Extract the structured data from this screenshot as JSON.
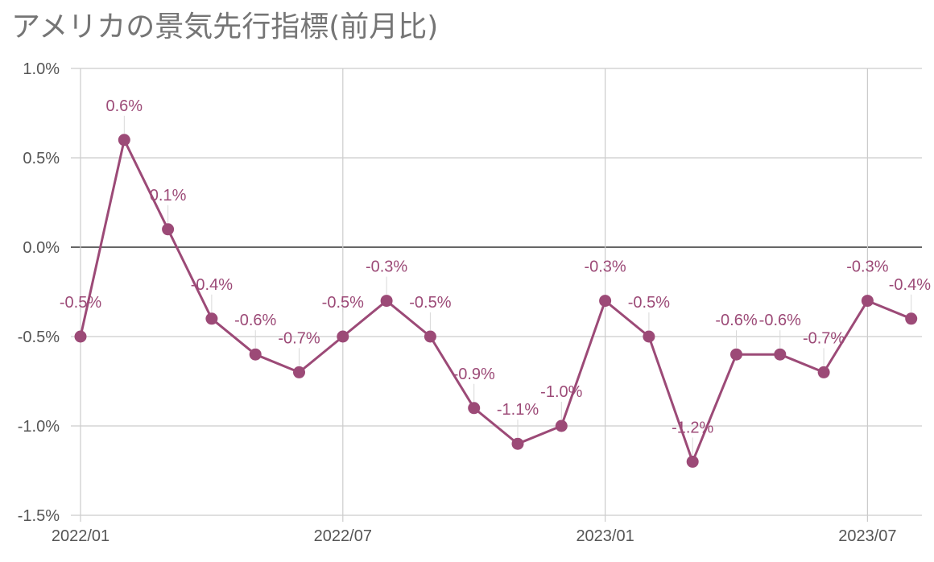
{
  "title": "アメリカの景気先行指標(前月比)",
  "colors": {
    "series": "#9c4a77",
    "grid": "#cccccc",
    "zero_line": "#333333",
    "tick_text": "#555555",
    "title": "#757575"
  },
  "chart_data": {
    "type": "line",
    "title": "アメリカの景気先行指標(前月比)",
    "x": [
      "2022/01",
      "2022/02",
      "2022/03",
      "2022/04",
      "2022/05",
      "2022/06",
      "2022/07",
      "2022/08",
      "2022/09",
      "2022/10",
      "2022/11",
      "2022/12",
      "2023/01",
      "2023/02",
      "2023/03",
      "2023/04",
      "2023/05",
      "2023/06",
      "2023/07",
      "2023/08"
    ],
    "values": [
      -0.5,
      0.6,
      0.1,
      -0.4,
      -0.6,
      -0.7,
      -0.5,
      -0.3,
      -0.5,
      -0.9,
      -1.1,
      -1.0,
      -0.3,
      -0.5,
      -1.2,
      -0.6,
      -0.6,
      -0.7,
      -0.3,
      -0.4
    ],
    "data_labels": [
      "-0.5%",
      "0.6%",
      "0.1%",
      "-0.4%",
      "-0.6%",
      "-0.7%",
      "-0.5%",
      "-0.3%",
      "-0.5%",
      "-0.9%",
      "-1.1%",
      "-1.0%",
      "-0.3%",
      "-0.5%",
      "-1.2%",
      "-0.6%",
      "-0.6%",
      "-0.7%",
      "-0.3%",
      "-0.4%"
    ],
    "x_tick_labels": [
      "2022/01",
      "2022/07",
      "2023/01",
      "2023/07"
    ],
    "x_tick_indices": [
      0,
      6,
      12,
      18
    ],
    "y_tick_values": [
      1.0,
      0.5,
      0.0,
      -0.5,
      -1.0,
      -1.5
    ],
    "y_tick_labels": [
      "1.0%",
      "0.5%",
      "0.0%",
      "-0.5%",
      "-1.0%",
      "-1.5%"
    ],
    "ylim": [
      -1.5,
      1.0
    ],
    "grid": true,
    "legend": "none"
  }
}
